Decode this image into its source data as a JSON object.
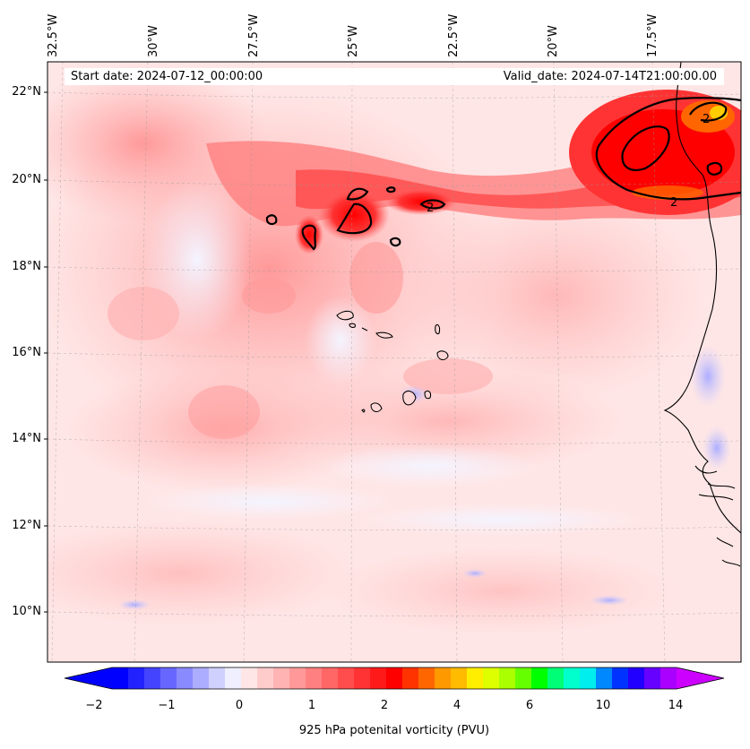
{
  "map": {
    "variable": "925 hPa potenital vorticity (PVU)",
    "start_date_label": "Start date: 2024-07-12_00:00:00",
    "valid_date_label": "Valid_date: 2024-07-14T21:00:00.00",
    "contour_label": "2",
    "lon_labels": [
      "32.5°W",
      "30°W",
      "27.5°W",
      "25°W",
      "22.5°W",
      "20°W",
      "17.5°W"
    ],
    "lat_labels": [
      "22°N",
      "20°N",
      "18°N",
      "16°N",
      "14°N",
      "12°N",
      "10°N"
    ]
  },
  "colorbar": {
    "ticks": [
      "−2",
      "−1",
      "0",
      "1",
      "2",
      "4",
      "6",
      "10",
      "14"
    ],
    "colors": [
      "#0000ff",
      "#2222ff",
      "#4444ff",
      "#6767ff",
      "#8a8aff",
      "#adadff",
      "#d0d0ff",
      "#efefff",
      "#ffe6e6",
      "#ffcccc",
      "#ffb3b3",
      "#ff9999",
      "#ff8080",
      "#ff6666",
      "#ff4d4d",
      "#ff3333",
      "#ff1a1a",
      "#ff0000",
      "#ff3300",
      "#ff6600",
      "#ff9900",
      "#ffbb00",
      "#ffee00",
      "#ddff00",
      "#aaff00",
      "#66ff00",
      "#00ff00",
      "#00ff77",
      "#00ffcc",
      "#00eeee",
      "#0088ff",
      "#0033ff",
      "#2200ff",
      "#6600ff",
      "#aa00ff"
    ],
    "under_color": "#0000ff",
    "over_color": "#cc00ff"
  },
  "style": {
    "background_fill": "#ffe6e6",
    "coast_color": "#000000",
    "contour_color": "#000000"
  }
}
